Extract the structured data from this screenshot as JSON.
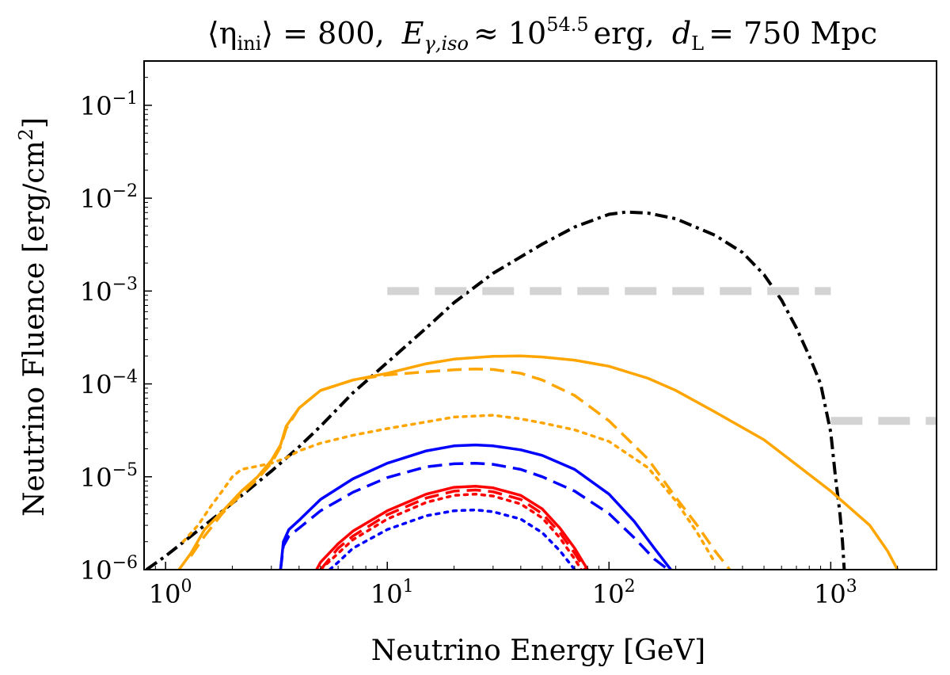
{
  "chart_data": {
    "type": "line",
    "title": "⟨η_ini⟩ = 800, E_γ,iso ≈ 10^54.5 erg, d_L = 750 Mpc",
    "title_parts": {
      "eta": "⟨η",
      "eta_sub": "ini",
      "eta_tail": "⟩ = 800,",
      "E": "E",
      "E_sub": "γ,iso",
      "E_mid": "≈ 10",
      "E_exp": "54.5",
      "E_tail": "erg,",
      "d": "d",
      "d_sub": "L",
      "d_tail": "= 750 Mpc"
    },
    "xlabel": "Neutrino Energy [GeV]",
    "ylabel": "Neutrino Fluence [erg/cm",
    "ylabel_exp": "2",
    "ylabel_tail": "]",
    "x_scale": "log",
    "y_scale": "log",
    "xlim": [
      0.8,
      3000
    ],
    "ylim": [
      1e-06,
      0.3
    ],
    "x_ticks": [
      {
        "value": 1,
        "base": "10",
        "exp": "0"
      },
      {
        "value": 10,
        "base": "10",
        "exp": "1"
      },
      {
        "value": 100,
        "base": "10",
        "exp": "2"
      },
      {
        "value": 1000,
        "base": "10",
        "exp": "3"
      }
    ],
    "y_ticks": [
      {
        "value": 1e-06,
        "base": "10",
        "exp": "−6"
      },
      {
        "value": 1e-05,
        "base": "10",
        "exp": "−5"
      },
      {
        "value": 0.0001,
        "base": "10",
        "exp": "−4"
      },
      {
        "value": 0.001,
        "base": "10",
        "exp": "−3"
      },
      {
        "value": 0.01,
        "base": "10",
        "exp": "−2"
      },
      {
        "value": 0.1,
        "base": "10",
        "exp": "−1"
      }
    ],
    "grid": false,
    "legend": "none",
    "series": [
      {
        "color": "#000000",
        "style": "dashdot",
        "width": 4,
        "x": [
          0.82,
          1,
          1.5,
          2,
          3,
          4,
          5,
          7,
          10,
          15,
          20,
          30,
          50,
          70,
          100,
          120,
          150,
          200,
          300,
          400,
          500,
          600,
          700,
          800,
          900,
          1000,
          1050,
          1100,
          1130,
          1150
        ],
        "y": [
          1e-06,
          1.4e-06,
          3e-06,
          5.2e-06,
          1.15e-05,
          2.1e-05,
          3.5e-05,
          8e-05,
          0.00017,
          0.0004,
          0.00075,
          0.00155,
          0.0032,
          0.0049,
          0.0067,
          0.0071,
          0.0069,
          0.006,
          0.004,
          0.0026,
          0.0015,
          0.0008,
          0.0004,
          0.0002,
          0.0001,
          3e-05,
          1e-05,
          4e-06,
          2e-06,
          1e-06
        ]
      },
      {
        "color": "#ffa500",
        "style": "solid",
        "width": 3.5,
        "x": [
          1.15,
          1.3,
          1.5,
          1.8,
          2.2,
          2.6,
          3,
          3.3,
          3.5,
          4,
          5,
          7,
          10,
          15,
          20,
          30,
          40,
          50,
          70,
          100,
          150,
          200,
          300,
          500,
          700,
          1000,
          1500,
          1800,
          2000
        ],
        "y": [
          1e-06,
          1.5e-06,
          2.7e-06,
          4.2e-06,
          7e-06,
          1e-05,
          1.5e-05,
          2.2e-05,
          3.5e-05,
          5.5e-05,
          8.5e-05,
          0.00011,
          0.00013,
          0.000165,
          0.000185,
          0.000198,
          0.0002,
          0.000195,
          0.00018,
          0.000155,
          0.000115,
          8.5e-05,
          5e-05,
          2.5e-05,
          1.35e-05,
          7e-06,
          3e-06,
          1.6e-06,
          1e-06
        ]
      },
      {
        "color": "#ffa500",
        "style": "dashed",
        "width": 3.5,
        "x": [
          1.3,
          1.5,
          1.8,
          2.2,
          2.6,
          3,
          3.3,
          3.5,
          4,
          5,
          7,
          10,
          15,
          20,
          25,
          30,
          40,
          50,
          70,
          100,
          150,
          200,
          250,
          300,
          350
        ],
        "y": [
          1.4e-06,
          2.3e-06,
          4e-06,
          6.5e-06,
          9.5e-06,
          1.4e-05,
          2.1e-05,
          3.3e-05,
          5.5e-05,
          8.5e-05,
          0.00011,
          0.000125,
          0.000135,
          0.000142,
          0.000145,
          0.000143,
          0.00013,
          0.00011,
          7.5e-05,
          4e-05,
          1.55e-05,
          6e-06,
          3e-06,
          1.6e-06,
          1e-06
        ]
      },
      {
        "color": "#ffa500",
        "style": "dotted",
        "width": 3.5,
        "x": [
          1.2,
          1.4,
          1.6,
          1.8,
          2,
          2.2,
          2.6,
          3,
          3.5,
          4,
          5,
          7,
          10,
          15,
          20,
          30,
          40,
          50,
          70,
          100,
          150,
          200,
          250,
          300
        ],
        "y": [
          2e-06,
          3e-06,
          4.8e-06,
          7e-06,
          1e-05,
          1.2e-05,
          1.3e-05,
          1.4e-05,
          1.6e-05,
          1.9e-05,
          2.3e-05,
          2.8e-05,
          3.3e-05,
          3.9e-05,
          4.4e-05,
          4.6e-05,
          4.2e-05,
          3.8e-05,
          3.2e-05,
          2.4e-05,
          1.25e-05,
          5.5e-06,
          2.5e-06,
          1.2e-06
        ]
      },
      {
        "color": "#0000ff",
        "style": "solid",
        "width": 3.5,
        "x": [
          3.3,
          3.4,
          3.6,
          4,
          5,
          7,
          10,
          15,
          20,
          25,
          30,
          40,
          50,
          70,
          100,
          130,
          160,
          190
        ],
        "y": [
          1e-06,
          2e-06,
          2.7e-06,
          3.4e-06,
          5.7e-06,
          9.5e-06,
          1.4e-05,
          1.9e-05,
          2.15e-05,
          2.2e-05,
          2.15e-05,
          1.95e-05,
          1.7e-05,
          1.2e-05,
          6.5e-06,
          3.3e-06,
          1.7e-06,
          1e-06
        ]
      },
      {
        "color": "#0000ff",
        "style": "dashed",
        "width": 3.5,
        "x": [
          3.3,
          3.4,
          3.6,
          4,
          5,
          7,
          10,
          15,
          20,
          25,
          30,
          40,
          50,
          70,
          100,
          130,
          160,
          185
        ],
        "y": [
          1e-06,
          1.8e-06,
          2.3e-06,
          2.8e-06,
          4.3e-06,
          6.8e-06,
          9.8e-06,
          1.28e-05,
          1.38e-05,
          1.4e-05,
          1.36e-05,
          1.2e-05,
          1e-05,
          7e-06,
          4e-06,
          2.2e-06,
          1.3e-06,
          1e-06
        ]
      },
      {
        "color": "#0000ff",
        "style": "dotted",
        "width": 3.5,
        "x": [
          5.5,
          6,
          7,
          10,
          15,
          20,
          25,
          30,
          40,
          50,
          60,
          70
        ],
        "y": [
          1e-06,
          1.2e-06,
          1.7e-06,
          2.7e-06,
          3.8e-06,
          4.3e-06,
          4.4e-06,
          4.2e-06,
          3.5e-06,
          2.5e-06,
          1.6e-06,
          1e-06
        ]
      },
      {
        "color": "#ff0000",
        "style": "solid",
        "width": 3.5,
        "x": [
          4.8,
          5,
          6,
          7,
          10,
          15,
          20,
          25,
          30,
          40,
          50,
          60,
          70,
          80
        ],
        "y": [
          1e-06,
          1.2e-06,
          1.9e-06,
          2.6e-06,
          4.3e-06,
          6.5e-06,
          7.7e-06,
          7.9e-06,
          7.6e-06,
          6.3e-06,
          4.5e-06,
          2.8e-06,
          1.7e-06,
          1e-06
        ]
      },
      {
        "color": "#ff0000",
        "style": "dashed",
        "width": 3.5,
        "x": [
          5,
          6,
          7,
          10,
          15,
          20,
          25,
          30,
          40,
          50,
          60,
          70,
          78
        ],
        "y": [
          1e-06,
          1.7e-06,
          2.3e-06,
          3.9e-06,
          5.9e-06,
          7e-06,
          7.2e-06,
          6.9e-06,
          5.7e-06,
          4e-06,
          2.5e-06,
          1.5e-06,
          1e-06
        ]
      },
      {
        "color": "#ff0000",
        "style": "dotted",
        "width": 3.5,
        "x": [
          5,
          6,
          7,
          10,
          15,
          20,
          25,
          30,
          40,
          50,
          60,
          70,
          75
        ],
        "y": [
          1e-06,
          1.5e-06,
          2.1e-06,
          3.5e-06,
          5.3e-06,
          6.3e-06,
          6.5e-06,
          6.2e-06,
          5.1e-06,
          3.6e-06,
          2.2e-06,
          1.3e-06,
          1e-06
        ]
      },
      {
        "color": "#d3d3d3",
        "style": "dashed-thick",
        "width": 10,
        "x": [
          10,
          1000
        ],
        "y": [
          0.001,
          0.001
        ]
      },
      {
        "color": "#d3d3d3",
        "style": "dashed-thick",
        "width": 10,
        "x": [
          1000,
          3000
        ],
        "y": [
          4e-05,
          4e-05
        ]
      }
    ]
  }
}
